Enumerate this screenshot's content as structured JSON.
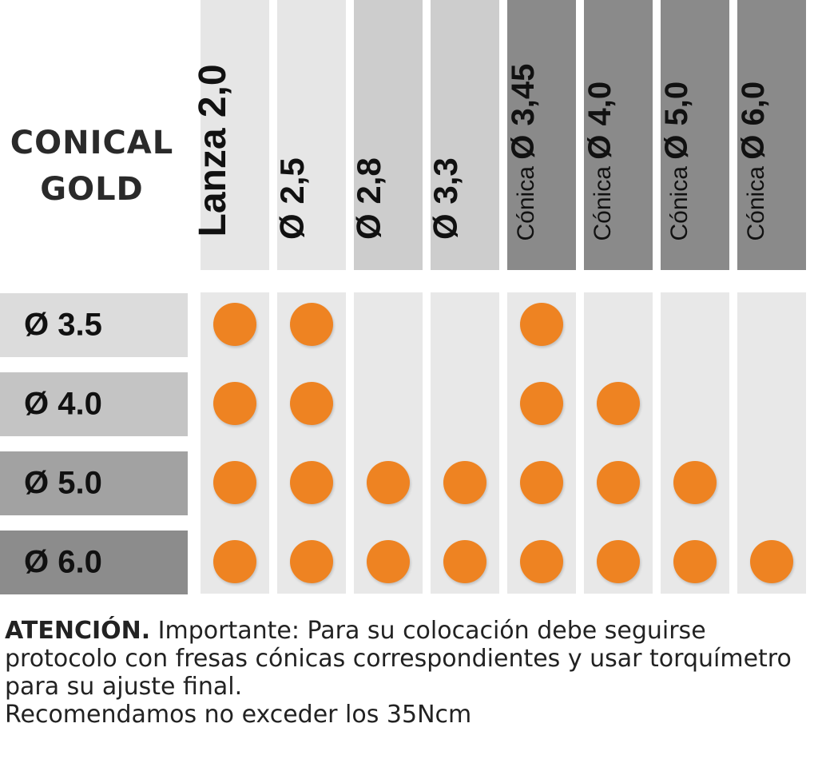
{
  "title": {
    "line1": "CONICAL",
    "line2": "GOLD"
  },
  "columns": [
    {
      "label": "Lanza 2,0",
      "shade": "#e6e6e6"
    },
    {
      "label": "Ø 2,5",
      "shade": "#e6e6e6"
    },
    {
      "label": "Ø 2,8",
      "shade": "#cdcdcd"
    },
    {
      "label": "Ø 3,3",
      "shade": "#cdcdcd"
    },
    {
      "label_small": "Cónica",
      "label_big": "Ø 3,45",
      "shade": "#8a8a8a"
    },
    {
      "label_small": "Cónica",
      "label_big": "Ø 4,0",
      "shade": "#8a8a8a"
    },
    {
      "label_small": "Cónica",
      "label_big": "Ø 5,0",
      "shade": "#8a8a8a"
    },
    {
      "label_small": "Cónica",
      "label_big": "Ø 6,0",
      "shade": "#8a8a8a"
    }
  ],
  "rows": [
    {
      "label": "Ø 3.5",
      "shade": "#dcdcdc",
      "dots": [
        1,
        1,
        0,
        0,
        1,
        0,
        0,
        0
      ]
    },
    {
      "label": "Ø 4.0",
      "shade": "#c4c4c4",
      "dots": [
        1,
        1,
        0,
        0,
        1,
        1,
        0,
        0
      ]
    },
    {
      "label": "Ø 5.0",
      "shade": "#a2a2a2",
      "dots": [
        1,
        1,
        1,
        1,
        1,
        1,
        1,
        0
      ]
    },
    {
      "label": "Ø 6.0",
      "shade": "#8c8c8c",
      "dots": [
        1,
        1,
        1,
        1,
        1,
        1,
        1,
        1
      ]
    }
  ],
  "lower_column_shade": "#e8e8e8",
  "dot_color": "#ee8322",
  "note": {
    "bold": "ATENCIÓN.",
    "text": " Importante: Para su colocación debe seguirse protocolo con fresas cónicas correspondientes y usar torquímetro para su ajuste final.",
    "line2": "Recomendamos no exceder los 35Ncm"
  }
}
